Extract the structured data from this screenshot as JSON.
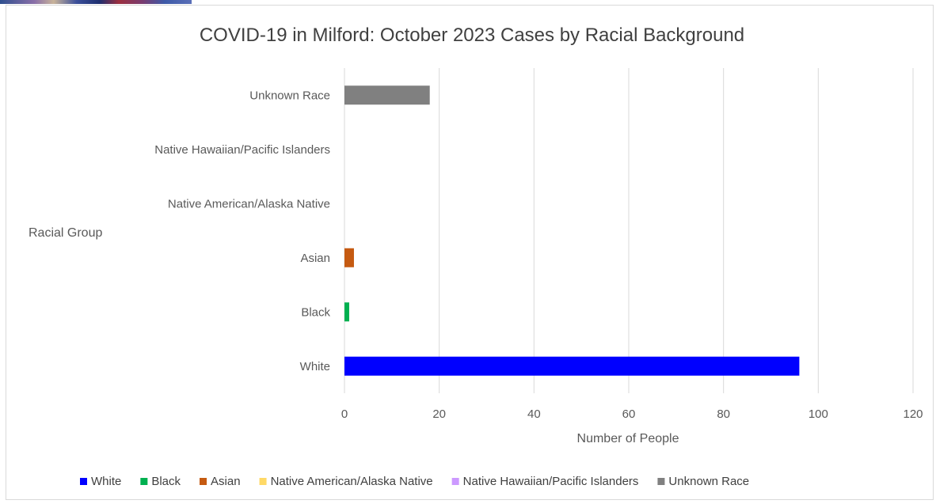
{
  "chart_data": {
    "type": "bar",
    "orientation": "horizontal",
    "title": "COVID-19 in Milford: October 2023 Cases by Racial Background",
    "xlabel": "Number of People",
    "ylabel": "Racial Group",
    "xlim": [
      0,
      120
    ],
    "x_ticks": [
      0,
      20,
      40,
      60,
      80,
      100,
      120
    ],
    "grid": "vertical",
    "legend_position": "bottom",
    "categories": [
      "White",
      "Black",
      "Asian",
      "Native American/Alaska Native",
      "Native Hawaiian/Pacific Islanders",
      "Unknown Race"
    ],
    "values": [
      96,
      1,
      2,
      0,
      0,
      18
    ],
    "colors": [
      "#0000ff",
      "#00b050",
      "#c55a11",
      "#ffd966",
      "#cc99ff",
      "#808080"
    ]
  }
}
